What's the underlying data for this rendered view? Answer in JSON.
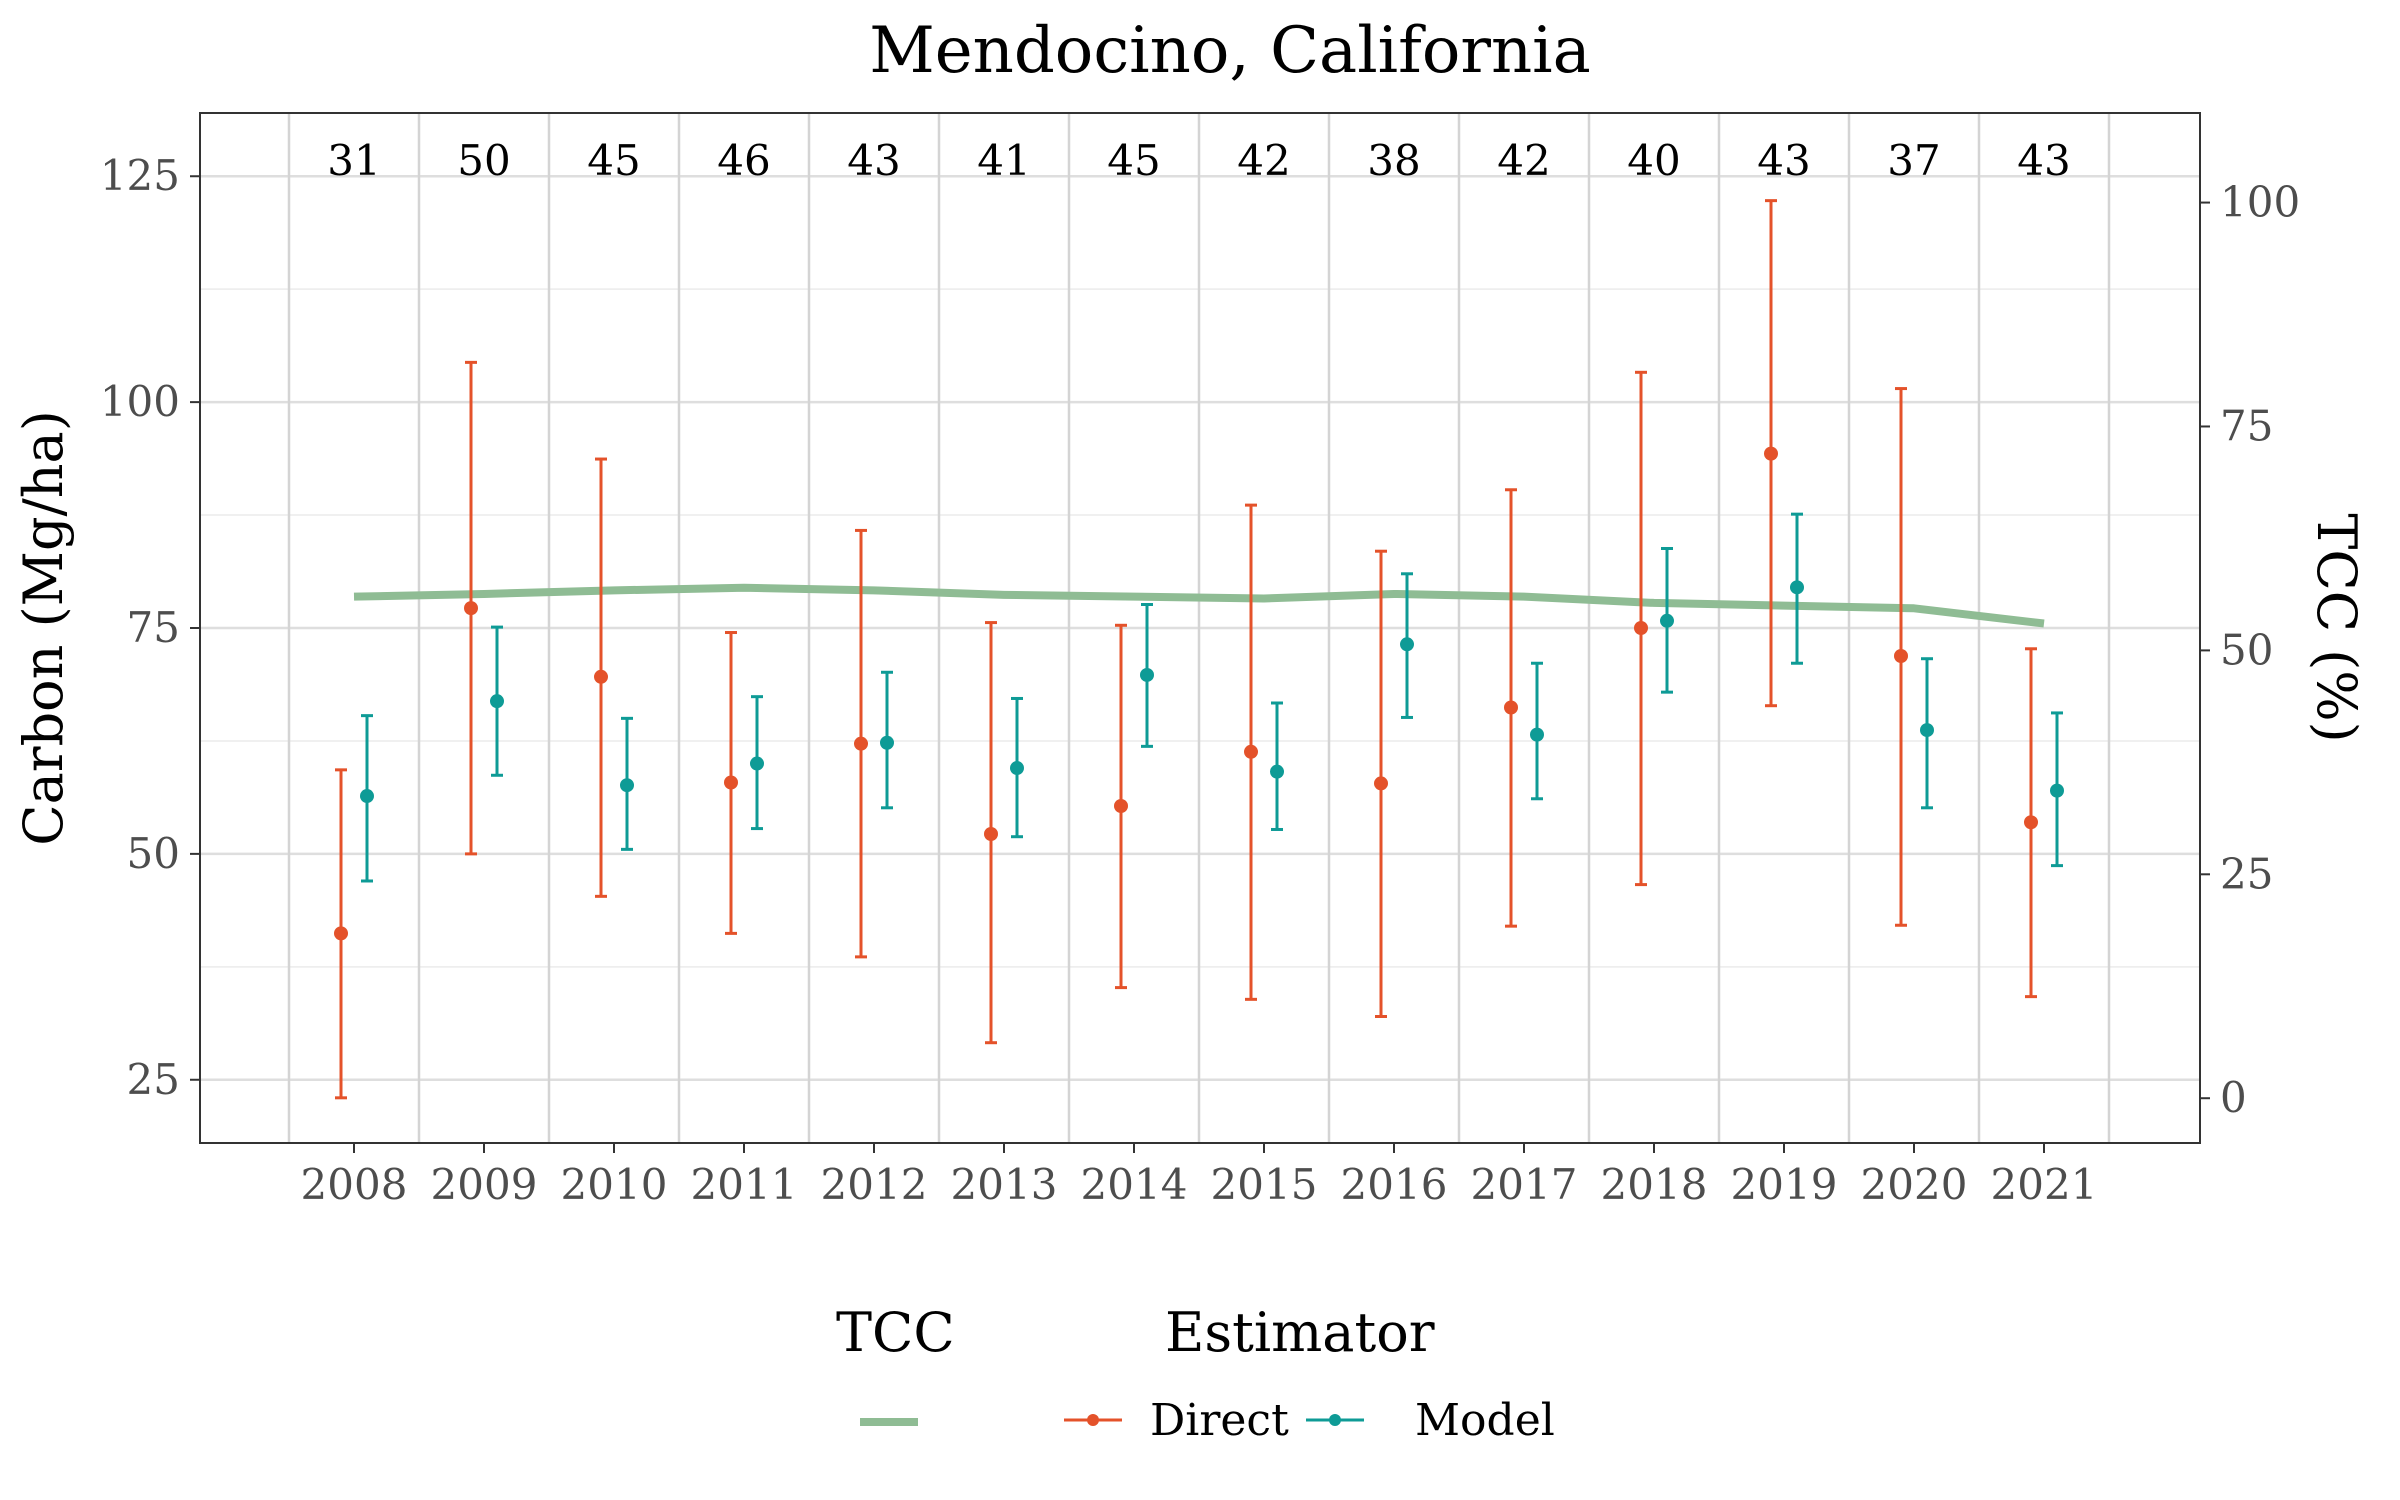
{
  "chart_data": {
    "type": "line",
    "title": "Mendocino, California",
    "xlabel": "",
    "ylabel": "Carbon (Mg/ha)",
    "y2label": "TCC (%)",
    "categories": [
      2008,
      2009,
      2010,
      2011,
      2012,
      2013,
      2014,
      2015,
      2016,
      2017,
      2018,
      2019,
      2020,
      2021
    ],
    "counts": [
      31,
      50,
      45,
      46,
      43,
      41,
      45,
      42,
      38,
      42,
      40,
      43,
      37,
      43
    ],
    "ylim": [
      18,
      132
    ],
    "y2lim": [
      -5,
      110
    ],
    "yticks": [
      25,
      50,
      75,
      100,
      125
    ],
    "y2ticks": [
      0,
      25,
      50,
      75,
      100
    ],
    "grid": true,
    "legend_position": "bottom",
    "legend": {
      "tcc_title": "TCC",
      "estimator_title": "Estimator",
      "entries": [
        "Direct",
        "Model"
      ]
    },
    "tcc": {
      "name": "TCC",
      "color": "#8fbc94",
      "values": [
        56.0,
        56.3,
        56.7,
        57.0,
        56.7,
        56.2,
        56.0,
        55.8,
        56.3,
        56.0,
        55.3,
        55.0,
        54.7,
        53.0
      ]
    },
    "series": [
      {
        "name": "Direct",
        "color": "#e4522a",
        "values": [
          41.2,
          77.2,
          69.6,
          57.9,
          62.2,
          52.2,
          55.3,
          61.3,
          57.8,
          66.2,
          75.0,
          94.3,
          71.9,
          53.5
        ],
        "lower": [
          23.0,
          50.0,
          45.3,
          41.2,
          38.6,
          29.1,
          35.2,
          33.9,
          32.0,
          42.0,
          46.6,
          66.4,
          42.1,
          34.2
        ],
        "upper": [
          59.3,
          104.4,
          93.7,
          74.5,
          85.8,
          75.6,
          75.3,
          88.6,
          83.5,
          90.3,
          103.3,
          122.3,
          101.5,
          72.7
        ]
      },
      {
        "name": "Model",
        "color": "#0e9b96",
        "values": [
          56.4,
          66.9,
          57.6,
          60.0,
          62.3,
          59.5,
          69.8,
          59.1,
          73.2,
          63.2,
          75.8,
          79.5,
          63.7,
          57.0
        ],
        "lower": [
          47.0,
          58.7,
          50.5,
          52.8,
          55.1,
          51.9,
          61.9,
          52.7,
          65.1,
          56.1,
          67.9,
          71.1,
          55.1,
          48.7
        ],
        "upper": [
          65.3,
          75.1,
          65.0,
          67.4,
          70.1,
          67.2,
          77.6,
          66.7,
          81.0,
          71.1,
          83.8,
          87.6,
          71.6,
          65.6
        ]
      }
    ]
  }
}
